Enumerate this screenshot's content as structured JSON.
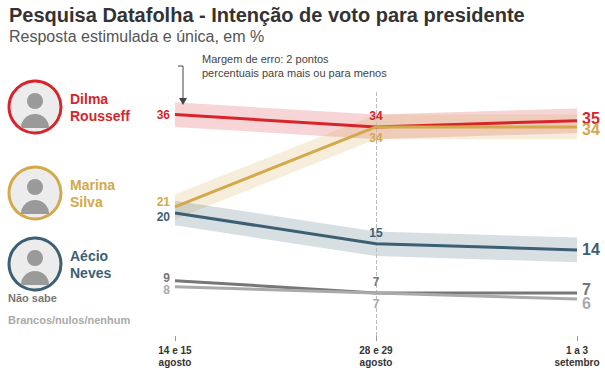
{
  "chart_data": {
    "type": "line",
    "title": "Pesquisa Datafolha - Intenção de voto para presidente",
    "subtitle": "Resposta estimulada e única, em %",
    "annotation": "Margem de erro: 2 pontos\npercentuais para mais ou para menos",
    "categories": [
      "14 e 15 agosto",
      "28 e 29 agosto",
      "1 a 3 setembro"
    ],
    "series": [
      {
        "name": "Dilma Rousseff",
        "color": "#d7262b",
        "values": [
          36,
          34,
          35
        ],
        "errors": [
          2,
          2,
          2
        ]
      },
      {
        "name": "Marina Silva",
        "color": "#d4a84b",
        "values": [
          21,
          34,
          34
        ],
        "errors": [
          2,
          2,
          2
        ]
      },
      {
        "name": "Aécio Neves",
        "color": "#3d5f73",
        "values": [
          20,
          15,
          14
        ],
        "errors": [
          2,
          2,
          2
        ]
      },
      {
        "name": "Não sabe",
        "color": "#777777",
        "values": [
          9,
          7,
          7
        ]
      },
      {
        "name": "Brancos/nulos/nenhum",
        "color": "#aaaaaa",
        "values": [
          8,
          7,
          6
        ]
      }
    ],
    "ylim": [
      0,
      40
    ],
    "yticks": [
      0,
      10,
      20,
      30,
      40
    ],
    "grid": false,
    "tick_labels": "x",
    "data_labels": true,
    "legend": "left"
  }
}
